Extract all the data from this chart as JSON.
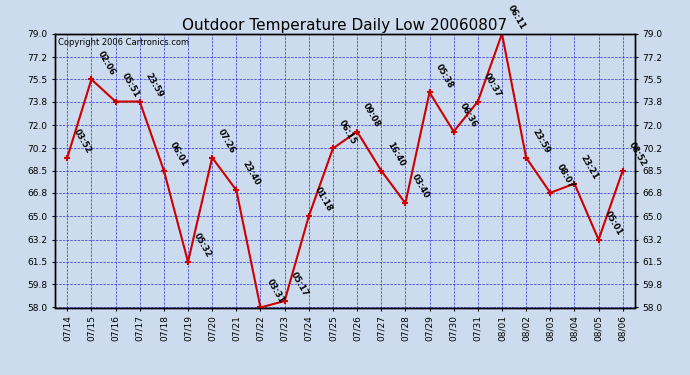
{
  "title": "Outdoor Temperature Daily Low 20060807",
  "copyright": "Copyright 2006 Cartronics.com",
  "x_labels": [
    "07/14",
    "07/15",
    "07/16",
    "07/17",
    "07/18",
    "07/19",
    "07/20",
    "07/21",
    "07/22",
    "07/23",
    "07/24",
    "07/25",
    "07/26",
    "07/27",
    "07/28",
    "07/29",
    "07/30",
    "07/31",
    "08/01",
    "08/02",
    "08/03",
    "08/04",
    "08/05",
    "08/06"
  ],
  "y_values": [
    69.5,
    75.5,
    73.8,
    73.8,
    68.5,
    61.5,
    69.5,
    67.0,
    58.0,
    58.5,
    65.0,
    70.2,
    71.5,
    68.5,
    66.0,
    74.5,
    71.5,
    73.8,
    79.0,
    69.5,
    66.8,
    67.5,
    63.2,
    68.5
  ],
  "time_labels": [
    "03:52",
    "02:06",
    "05:51",
    "23:59",
    "06:01",
    "05:32",
    "07:26",
    "23:40",
    "03:31",
    "05:17",
    "01:18",
    "06:15",
    "09:08",
    "16:40",
    "03:40",
    "05:38",
    "06:36",
    "00:37",
    "06:11",
    "23:59",
    "08:07",
    "23:21",
    "05:01",
    "08:52"
  ],
  "ylim": [
    58.0,
    79.0
  ],
  "yticks": [
    58.0,
    59.8,
    61.5,
    63.2,
    65.0,
    66.8,
    68.5,
    70.2,
    72.0,
    73.8,
    75.5,
    77.2,
    79.0
  ],
  "line_color": "#cc0000",
  "marker_color": "#cc0000",
  "grid_color": "#2222cc",
  "background_color": "#ccdcee",
  "border_color": "#000000",
  "title_fontsize": 11,
  "label_fontsize": 6,
  "tick_fontsize": 6.5,
  "copyright_fontsize": 6
}
